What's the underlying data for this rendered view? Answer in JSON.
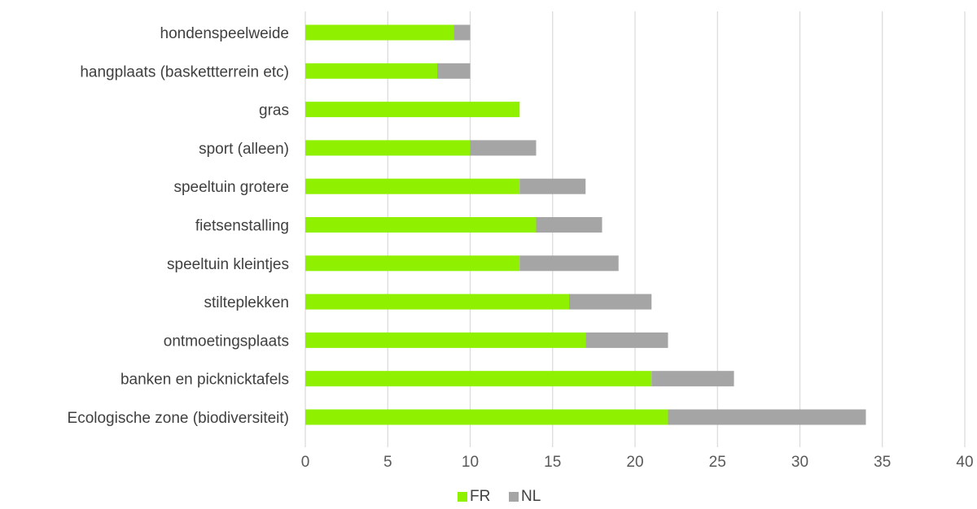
{
  "chart_data": {
    "type": "bar",
    "orientation": "horizontal",
    "stacked": true,
    "title": "",
    "xlabel": "",
    "ylabel": "",
    "categories": [
      "Ecologische zone (biodiversiteit)",
      "banken en picknicktafels",
      "ontmoetingsplaats",
      "stilteplekken",
      "speeltuin kleintjes",
      "fietsenstalling",
      "speeltuin grotere",
      "sport (alleen)",
      "gras",
      "hangplaats (baskettterrein etc)",
      "hondenspeelweide"
    ],
    "series": [
      {
        "name": "FR",
        "color": "#8ff000",
        "values": [
          22,
          21,
          17,
          16,
          13,
          14,
          13,
          10,
          13,
          8,
          9
        ]
      },
      {
        "name": "NL",
        "color": "#a5a5a5",
        "values": [
          12,
          5,
          5,
          5,
          6,
          4,
          4,
          4,
          0,
          2,
          1
        ]
      }
    ],
    "xlim": [
      0,
      40
    ],
    "xticks": [
      0,
      5,
      10,
      15,
      20,
      25,
      30,
      35,
      40
    ],
    "grid": true,
    "legend_position": "bottom"
  }
}
